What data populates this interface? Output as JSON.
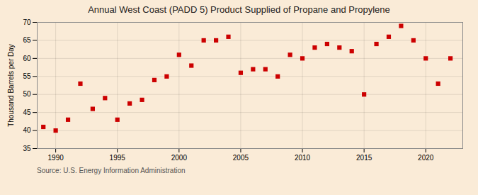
{
  "chart_data": {
    "type": "scatter",
    "title": "Annual West Coast (PADD 5) Product Supplied of Propane and Propylene",
    "ylabel": "Thousand Barrels per Day",
    "annotation": "Source: U.S. Energy Information Administration",
    "x": [
      1989,
      1990,
      1991,
      1992,
      1993,
      1994,
      1995,
      1996,
      1997,
      1998,
      1999,
      2000,
      2001,
      2002,
      2003,
      2004,
      2005,
      2006,
      2007,
      2008,
      2009,
      2010,
      2011,
      2012,
      2013,
      2014,
      2015,
      2016,
      2017,
      2018,
      2019,
      2020,
      2021,
      2022
    ],
    "values": [
      41,
      40,
      43,
      53,
      46,
      49,
      43,
      47.5,
      48.5,
      54,
      55,
      61,
      58,
      65,
      65,
      66,
      56,
      57,
      57,
      55,
      61,
      60,
      63,
      64,
      63,
      62,
      50,
      64,
      66,
      69,
      65,
      60,
      53,
      60
    ],
    "color": "#cc0000",
    "marker": "square",
    "xlim": [
      1988.5,
      2023
    ],
    "ylim": [
      35,
      70
    ],
    "xticks": [
      1990,
      1995,
      2000,
      2005,
      2010,
      2015,
      2020
    ],
    "yticks": [
      35,
      40,
      45,
      50,
      55,
      60,
      65,
      70
    ],
    "grid": true
  }
}
